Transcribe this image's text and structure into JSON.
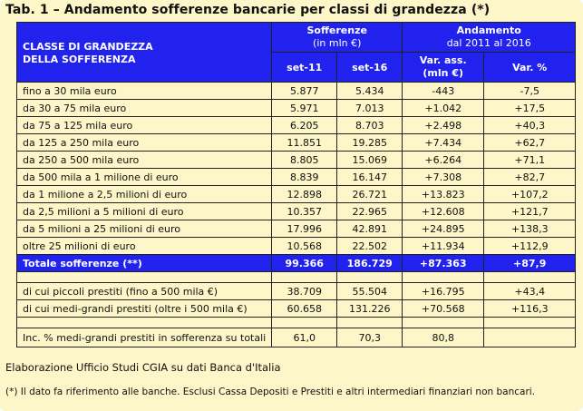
{
  "title": "Tab. 1 – Andamento sofferenze bancarie per classi di grandezza (*)",
  "headers": {
    "class_label_line1": "CLASSE DI GRANDEZZA",
    "class_label_line2": "DELLA SOFFERENZA",
    "sofferenze_line1": "Sofferenze",
    "sofferenze_line2": "(in mln €)",
    "andamento_line1": "Andamento",
    "andamento_line2": "dal 2011 al 2016",
    "col_set11": "set-11",
    "col_set16": "set-16",
    "col_varass_line1": "Var. ass.",
    "col_varass_line2": "(mln €)",
    "col_varpct": "Var. %"
  },
  "rows": [
    {
      "label": "fino a 30 mila euro",
      "set11": "5.877",
      "set16": "5.434",
      "varass": "-443",
      "varpct": "-7,5"
    },
    {
      "label": "da 30 a 75 mila euro",
      "set11": "5.971",
      "set16": "7.013",
      "varass": "+1.042",
      "varpct": "+17,5"
    },
    {
      "label": "da 75 a 125 mila euro",
      "set11": "6.205",
      "set16": "8.703",
      "varass": "+2.498",
      "varpct": "+40,3"
    },
    {
      "label": "da 125 a 250 mila euro",
      "set11": "11.851",
      "set16": "19.285",
      "varass": "+7.434",
      "varpct": "+62,7"
    },
    {
      "label": "da 250 a 500 mila euro",
      "set11": "8.805",
      "set16": "15.069",
      "varass": "+6.264",
      "varpct": "+71,1"
    },
    {
      "label": "da 500 mila a 1 milione di euro",
      "set11": "8.839",
      "set16": "16.147",
      "varass": "+7.308",
      "varpct": "+82,7"
    },
    {
      "label": "da 1 milione a 2,5 milioni di euro",
      "set11": "12.898",
      "set16": "26.721",
      "varass": "+13.823",
      "varpct": "+107,2"
    },
    {
      "label": "da 2,5 milioni a 5 milioni di euro",
      "set11": "10.357",
      "set16": "22.965",
      "varass": "+12.608",
      "varpct": "+121,7"
    },
    {
      "label": "da 5 milioni a 25 milioni di euro",
      "set11": "17.996",
      "set16": "42.891",
      "varass": "+24.895",
      "varpct": "+138,3"
    },
    {
      "label": "oltre 25 milioni di euro",
      "set11": "10.568",
      "set16": "22.502",
      "varass": "+11.934",
      "varpct": "+112,9"
    }
  ],
  "total": {
    "label": "Totale sofferenze (**)",
    "set11": "99.366",
    "set16": "186.729",
    "varass": "+87.363",
    "varpct": "+87,9"
  },
  "sub_rows": [
    {
      "label": "di cui piccoli prestiti (fino a 500 mila €)",
      "set11": "38.709",
      "set16": "55.504",
      "varass": "+16.795",
      "varpct": "+43,4"
    },
    {
      "label": "di cui medi-grandi prestiti (oltre i 500 mila €)",
      "set11": "60.658",
      "set16": "131.226",
      "varass": "+70.568",
      "varpct": "+116,3"
    }
  ],
  "incidence": {
    "label": "Inc. % medi-grandi prestiti in sofferenza su totali",
    "set11": "61,0",
    "set16": "70,3",
    "varass": "80,8",
    "varpct": ""
  },
  "source": "Elaborazione Ufficio Studi CGIA su dati Banca d'Italia",
  "note": "(*) Il dato fa riferimento alle banche. Esclusi Cassa Depositi e Prestiti e altri intermediari finanziari non bancari.",
  "colors": {
    "header_bg": "#2222ee",
    "paper_bg": "#fdf6c8"
  }
}
